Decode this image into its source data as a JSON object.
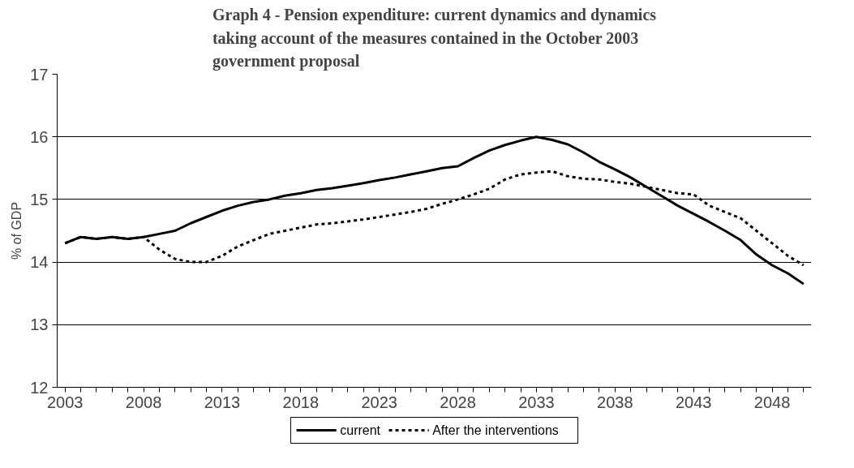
{
  "chart_data": {
    "type": "line",
    "title": "Graph 4 - Pension expenditure: current dynamics and dynamics taking account of the measures contained in the October 2003 government proposal",
    "ylabel": "% of GDP",
    "x": [
      2003,
      2004,
      2005,
      2006,
      2007,
      2008,
      2009,
      2010,
      2011,
      2012,
      2013,
      2014,
      2015,
      2016,
      2017,
      2018,
      2019,
      2020,
      2021,
      2022,
      2023,
      2024,
      2025,
      2026,
      2027,
      2028,
      2029,
      2030,
      2031,
      2032,
      2033,
      2034,
      2035,
      2036,
      2037,
      2038,
      2039,
      2040,
      2041,
      2042,
      2043,
      2044,
      2045,
      2046,
      2047,
      2048,
      2049,
      2050
    ],
    "series": [
      {
        "name": "current",
        "color": "#000000",
        "line_style": "solid",
        "values": [
          14.3,
          14.4,
          14.37,
          14.4,
          14.37,
          14.4,
          14.45,
          14.5,
          14.62,
          14.72,
          14.82,
          14.9,
          14.96,
          15.0,
          15.06,
          15.1,
          15.15,
          15.18,
          15.22,
          15.26,
          15.31,
          15.35,
          15.4,
          15.45,
          15.5,
          15.53,
          15.66,
          15.78,
          15.87,
          15.94,
          16.0,
          15.95,
          15.88,
          15.75,
          15.6,
          15.48,
          15.35,
          15.2,
          15.05,
          14.9,
          14.77,
          14.64,
          14.5,
          14.35,
          14.12,
          13.95,
          13.82,
          13.65
        ]
      },
      {
        "name": "After the interventions",
        "color": "#000000",
        "line_style": "dotted",
        "values": [
          14.3,
          14.4,
          14.37,
          14.4,
          14.37,
          14.4,
          14.2,
          14.05,
          14.0,
          14.0,
          14.1,
          14.25,
          14.35,
          14.45,
          14.5,
          14.55,
          14.6,
          14.62,
          14.65,
          14.68,
          14.72,
          14.76,
          14.8,
          14.85,
          14.93,
          15.0,
          15.08,
          15.17,
          15.32,
          15.4,
          15.43,
          15.45,
          15.37,
          15.33,
          15.32,
          15.28,
          15.25,
          15.2,
          15.15,
          15.1,
          15.08,
          14.9,
          14.8,
          14.7,
          14.5,
          14.3,
          14.1,
          13.95
        ]
      }
    ],
    "xlim": [
      2002.5,
      2050.5
    ],
    "xticks": [
      2003,
      2008,
      2013,
      2018,
      2023,
      2028,
      2033,
      2038,
      2043,
      2048
    ],
    "ylim": [
      12,
      17
    ],
    "yticks": [
      12,
      13,
      14,
      15,
      16,
      17
    ],
    "grid": "y",
    "legend": "bottom",
    "marker": "none"
  }
}
